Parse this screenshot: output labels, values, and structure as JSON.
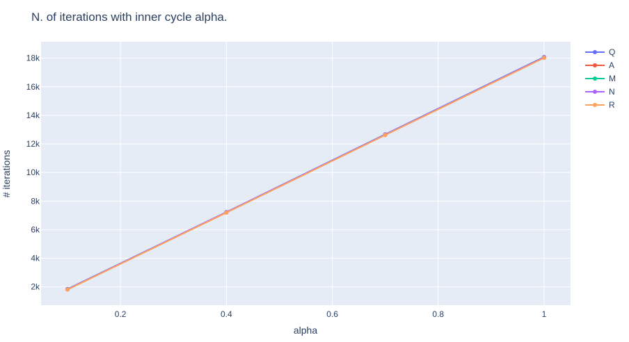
{
  "chart_data": {
    "type": "line",
    "title": "N. of iterations with inner cycle alpha.",
    "xlabel": "alpha",
    "ylabel": "# iterations",
    "x": [
      0.1,
      0.4,
      0.7,
      1.0
    ],
    "xlim": [
      0.05,
      1.05
    ],
    "ylim": [
      720,
      19150
    ],
    "x_ticks": [
      {
        "value": 0.2,
        "label": "0.2"
      },
      {
        "value": 0.4,
        "label": "0.4"
      },
      {
        "value": 0.6,
        "label": "0.6"
      },
      {
        "value": 0.8,
        "label": "0.8"
      },
      {
        "value": 1.0,
        "label": "1"
      }
    ],
    "y_ticks": [
      {
        "value": 2000,
        "label": "2k"
      },
      {
        "value": 4000,
        "label": "4k"
      },
      {
        "value": 6000,
        "label": "6k"
      },
      {
        "value": 8000,
        "label": "8k"
      },
      {
        "value": 10000,
        "label": "10k"
      },
      {
        "value": 12000,
        "label": "12k"
      },
      {
        "value": 14000,
        "label": "14k"
      },
      {
        "value": 16000,
        "label": "16k"
      },
      {
        "value": 18000,
        "label": "18k"
      }
    ],
    "grid": true,
    "legend_position": "top-right",
    "series": [
      {
        "name": "Q",
        "color": "#636efa",
        "values": [
          1850,
          7230,
          12670,
          18080
        ]
      },
      {
        "name": "A",
        "color": "#ef553b",
        "values": [
          1820,
          7200,
          12630,
          18030
        ]
      },
      {
        "name": "M",
        "color": "#00cc96",
        "values": [
          1830,
          7210,
          12650,
          18050
        ]
      },
      {
        "name": "N",
        "color": "#ab63fa",
        "values": [
          1830,
          7220,
          12650,
          18050
        ]
      },
      {
        "name": "R",
        "color": "#ffa15a",
        "values": [
          1810,
          7190,
          12620,
          18020
        ]
      }
    ]
  }
}
